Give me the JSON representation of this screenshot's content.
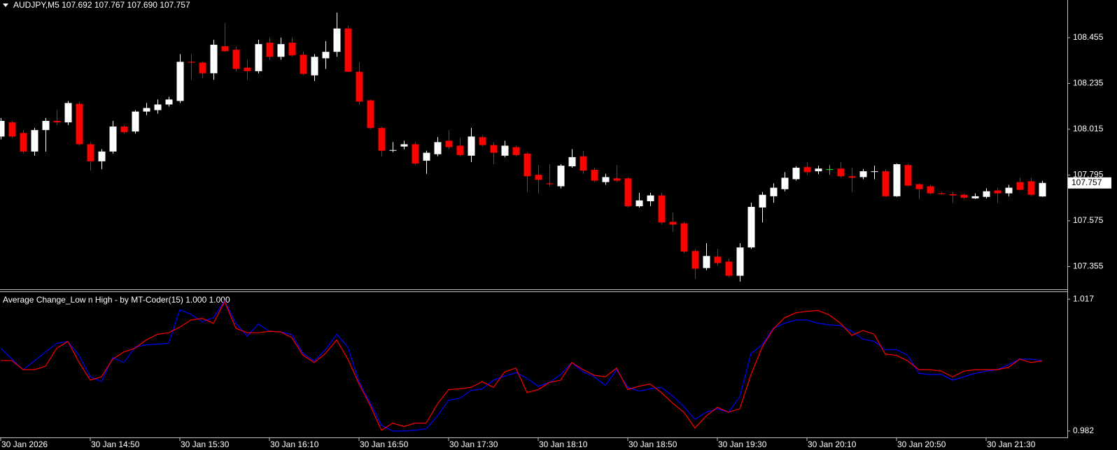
{
  "chart_data": [
    {
      "type": "candlestick",
      "title": "AUDJPY,M5 107.692 107.767 107.690 107.757",
      "categories": [
        "30 Jan 2026",
        null,
        null,
        null,
        null,
        null,
        null,
        null,
        "30 Jan 14:50",
        null,
        null,
        null,
        null,
        null,
        null,
        null,
        "30 Jan 15:30",
        null,
        null,
        null,
        null,
        null,
        null,
        null,
        "30 Jan 16:10",
        null,
        null,
        null,
        null,
        null,
        null,
        null,
        "30 Jan 16:50",
        null,
        null,
        null,
        null,
        null,
        null,
        null,
        "30 Jan 17:30",
        null,
        null,
        null,
        null,
        null,
        null,
        null,
        "30 Jan 18:10",
        null,
        null,
        null,
        null,
        null,
        null,
        null,
        "30 Jan 18:50",
        null,
        null,
        null,
        null,
        null,
        null,
        null,
        "30 Jan 19:30",
        null,
        null,
        null,
        null,
        null,
        null,
        null,
        "30 Jan 20:10",
        null,
        null,
        null,
        null,
        null,
        null,
        null,
        "30 Jan 20:50",
        null,
        null,
        null,
        null,
        null,
        null,
        null,
        "30 Jan 21:30",
        null,
        null,
        null,
        null,
        null
      ],
      "open": [
        107.98,
        108.048,
        107.997,
        107.908,
        108.011,
        108.055,
        108.048,
        108.137,
        107.943,
        107.861,
        107.908,
        108.028,
        108.004,
        108.1,
        108.107,
        108.134,
        108.151,
        108.339,
        108.335,
        108.284,
        108.414,
        108.397,
        108.311,
        108.294,
        108.431,
        108.363,
        108.431,
        108.373,
        108.274,
        108.356,
        108.387,
        108.499,
        108.291,
        108.154,
        108.021,
        107.912,
        107.932,
        107.943,
        107.864,
        107.895,
        107.96,
        107.936,
        107.888,
        107.977,
        107.939,
        107.888,
        107.929,
        107.898,
        107.796,
        107.755,
        107.741,
        107.837,
        107.885,
        107.82,
        107.761,
        107.779,
        107.779,
        107.645,
        107.669,
        107.697,
        107.57,
        107.563,
        107.43,
        107.348,
        107.403,
        107.379,
        107.311,
        107.447,
        107.639,
        107.693,
        107.727,
        107.775,
        107.833,
        107.813,
        107.823,
        107.826,
        107.789,
        107.785,
        107.811,
        107.813,
        107.693,
        107.843,
        107.751,
        107.741,
        107.707,
        107.703,
        107.7,
        107.683,
        107.69,
        107.721,
        107.707,
        107.761,
        107.765,
        107.692
      ],
      "high": [
        108.069,
        108.055,
        108.011,
        108.021,
        108.069,
        108.107,
        108.151,
        108.148,
        107.953,
        107.919,
        108.055,
        108.035,
        108.107,
        108.141,
        108.158,
        108.171,
        108.376,
        108.376,
        108.342,
        108.445,
        108.523,
        108.411,
        108.349,
        108.445,
        108.455,
        108.455,
        108.455,
        108.39,
        108.376,
        108.438,
        108.575,
        108.513,
        108.335,
        108.158,
        108.028,
        107.953,
        107.96,
        107.953,
        107.912,
        107.977,
        108.011,
        107.973,
        108.021,
        107.987,
        107.953,
        107.96,
        107.936,
        107.905,
        107.843,
        107.847,
        107.847,
        107.919,
        107.912,
        107.83,
        107.801,
        107.843,
        107.785,
        107.71,
        107.71,
        107.71,
        107.615,
        107.57,
        107.44,
        107.468,
        107.44,
        107.393,
        107.468,
        107.662,
        107.714,
        107.755,
        107.809,
        107.837,
        107.857,
        107.84,
        107.843,
        107.857,
        107.83,
        107.823,
        107.84,
        107.823,
        107.85,
        107.85,
        107.755,
        107.748,
        107.714,
        107.714,
        107.707,
        107.707,
        107.731,
        107.734,
        107.748,
        107.782,
        107.782,
        107.767
      ],
      "low": [
        107.966,
        107.973,
        107.898,
        107.888,
        107.908,
        108.035,
        108.035,
        107.936,
        107.816,
        107.823,
        107.898,
        107.994,
        107.994,
        108.083,
        108.09,
        108.124,
        108.141,
        108.253,
        108.26,
        108.253,
        108.387,
        108.294,
        108.253,
        108.284,
        108.349,
        108.349,
        108.363,
        108.274,
        108.247,
        108.305,
        108.363,
        108.291,
        108.134,
        108.014,
        107.885,
        107.905,
        107.919,
        107.843,
        107.801,
        107.885,
        107.919,
        107.885,
        107.857,
        107.932,
        107.847,
        107.881,
        107.885,
        107.714,
        107.707,
        107.741,
        107.731,
        107.83,
        107.801,
        107.761,
        107.748,
        107.761,
        107.639,
        107.639,
        107.645,
        107.557,
        107.522,
        107.42,
        107.297,
        107.338,
        107.358,
        107.304,
        107.283,
        107.44,
        107.567,
        107.662,
        107.717,
        107.768,
        107.796,
        107.799,
        107.796,
        107.782,
        107.714,
        107.775,
        107.775,
        107.69,
        107.69,
        107.741,
        107.68,
        107.7,
        107.7,
        107.662,
        107.68,
        107.68,
        107.683,
        107.662,
        107.693,
        107.721,
        107.693,
        107.69
      ],
      "close": [
        108.055,
        107.98,
        107.908,
        108.011,
        108.055,
        108.048,
        108.141,
        107.943,
        107.861,
        107.908,
        108.028,
        108.001,
        108.1,
        108.117,
        108.134,
        108.158,
        108.339,
        108.335,
        108.284,
        108.421,
        108.39,
        108.305,
        108.294,
        108.424,
        108.363,
        108.424,
        108.37,
        108.281,
        108.363,
        108.387,
        108.499,
        108.291,
        108.148,
        108.021,
        107.912,
        107.915,
        107.943,
        107.85,
        107.902,
        107.953,
        107.929,
        107.891,
        107.98,
        107.939,
        107.902,
        107.936,
        107.891,
        107.789,
        107.772,
        107.751,
        107.84,
        107.881,
        107.816,
        107.768,
        107.785,
        107.768,
        107.645,
        107.673,
        107.697,
        107.567,
        107.557,
        107.427,
        107.345,
        107.406,
        107.372,
        107.311,
        107.447,
        107.642,
        107.7,
        107.734,
        107.782,
        107.83,
        107.809,
        107.826,
        107.823,
        107.789,
        107.782,
        107.813,
        107.813,
        107.693,
        107.847,
        107.744,
        107.727,
        107.707,
        107.703,
        107.697,
        107.686,
        107.693,
        107.717,
        107.707,
        107.734,
        107.724,
        107.7,
        107.757
      ],
      "up_color": "#ffffff",
      "down_color": "#ff0000",
      "doji_color": "#00ff00",
      "ylim": [
        107.246,
        108.636
      ],
      "yticks": [
        108.455,
        108.235,
        108.015,
        107.795,
        107.575,
        107.355
      ]
    },
    {
      "type": "line",
      "title": "Average Change_Low n High - by MT-Coder(15) 1.000 1.000",
      "series": [
        {
          "color": "#0000ff",
          "values": [
            1.004,
            1.0011,
            0.9983,
            1.0006,
            1.003,
            1.0053,
            1.0058,
            1.0021,
            0.9964,
            0.9951,
            1.0015,
            1.0002,
            1.0043,
            1.0049,
            1.0051,
            1.0053,
            1.0142,
            1.013,
            1.011,
            1.0121,
            1.0166,
            1.0106,
            1.0072,
            1.0104,
            1.0085,
            1.0083,
            1.0076,
            1.0026,
            1.0006,
            1.0036,
            1.0077,
            1.0043,
            0.9951,
            0.9894,
            0.9835,
            0.982,
            0.982,
            0.9822,
            0.9826,
            0.986,
            0.9902,
            0.9907,
            0.9928,
            0.9932,
            0.9955,
            0.9966,
            0.9975,
            0.996,
            0.9939,
            0.9949,
            0.997,
            1.0002,
            0.9977,
            0.9964,
            0.9941,
            0.9983,
            0.9936,
            0.9926,
            0.9932,
            0.9936,
            0.9913,
            0.9885,
            0.9851,
            0.987,
            0.9879,
            0.987,
            0.9911,
            1.0026,
            1.0049,
            1.0093,
            1.0106,
            1.0115,
            1.0115,
            1.0106,
            1.0102,
            1.01,
            1.0085,
            1.0064,
            1.0058,
            1.0036,
            1.0036,
            1.0021,
            0.9973,
            0.997,
            0.997,
            0.9955,
            0.9964,
            0.9973,
            0.9979,
            0.9983,
            0.9996,
            1.0011,
            1.0011,
            1.0007
          ]
        },
        {
          "color": "#ff0000",
          "values": [
            1.0007,
            1.0007,
            0.9983,
            0.9983,
            0.9992,
            1.004,
            1.0058,
            1.0002,
            0.9955,
            0.9964,
            1.0011,
            1.003,
            1.004,
            1.0062,
            1.0077,
            1.0081,
            1.0096,
            1.0115,
            1.0119,
            1.0106,
            1.0164,
            1.0093,
            1.0081,
            1.0081,
            1.0085,
            1.0083,
            1.0068,
            1.0021,
            1.0002,
            1.0026,
            1.0062,
            1.0011,
            0.9945,
            0.9888,
            0.9822,
            0.9841,
            0.9832,
            0.9841,
            0.9841,
            0.9892,
            0.993,
            0.9932,
            0.9936,
            0.9951,
            0.9936,
            0.9977,
            0.9987,
            0.9922,
            0.993,
            0.9949,
            0.9955,
            1.0002,
            0.9983,
            0.9968,
            0.9964,
            0.9987,
            0.993,
            0.9939,
            0.9945,
            0.9922,
            0.9894,
            0.987,
            0.9828,
            0.986,
            0.9883,
            0.987,
            0.9879,
            0.997,
            1.0043,
            1.0091,
            1.0121,
            1.0134,
            1.0138,
            1.014,
            1.0128,
            1.0106,
            1.0074,
            1.0087,
            1.0077,
            1.0024,
            1.0021,
            1.0006,
            0.9983,
            0.9983,
            0.9979,
            0.9964,
            0.9979,
            0.9983,
            0.9983,
            0.9983,
            0.9989,
            1.0011,
            1.0002,
            1.0006
          ]
        }
      ],
      "ylim": [
        0.9803,
        1.0189
      ],
      "yticks": [
        1.017,
        0.982
      ]
    }
  ]
}
